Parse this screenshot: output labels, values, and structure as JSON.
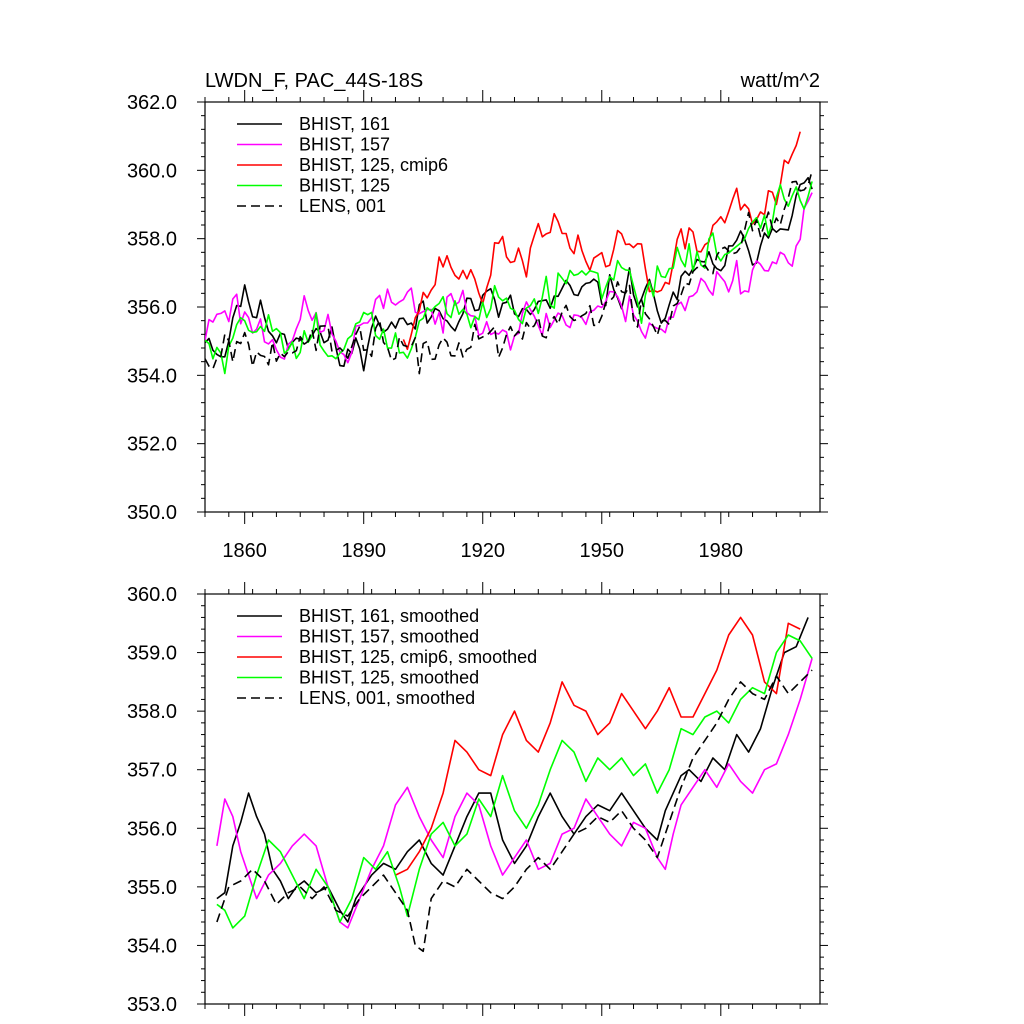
{
  "chart_data": [
    {
      "type": "line",
      "title": "LWDN_F, PAC_44S-18S",
      "units": "watt/m^2",
      "xlim": [
        1850,
        2005
      ],
      "ylim": [
        350.0,
        362.0
      ],
      "y_ticks": [
        "350.0",
        "352.0",
        "354.0",
        "356.0",
        "358.0",
        "360.0",
        "362.0"
      ],
      "x_ticks": [
        "1860",
        "1890",
        "1920",
        "1950",
        "1980"
      ],
      "legend_position": "top-left",
      "series": [
        {
          "name": "BHIST, 161",
          "color": "#000000",
          "dash": "solid",
          "anchors_x": [
            1850,
            1855,
            1858,
            1862,
            1866,
            1870,
            1875,
            1880,
            1885,
            1890,
            1895,
            1900,
            1905,
            1910,
            1915,
            1920,
            1925,
            1930,
            1935,
            1940,
            1945,
            1950,
            1955,
            1960,
            1965,
            1970,
            1975,
            1980,
            1985,
            1990,
            1995,
            2003
          ],
          "anchors_y": [
            355.3,
            354.6,
            356.3,
            356.0,
            355.5,
            355.2,
            355.3,
            355.1,
            354.4,
            355.0,
            355.6,
            355.4,
            355.7,
            355.9,
            356.0,
            356.2,
            355.9,
            355.8,
            356.0,
            356.2,
            356.4,
            356.4,
            356.5,
            356.6,
            355.8,
            356.5,
            357.1,
            357.4,
            357.6,
            358.0,
            358.7,
            359.5
          ],
          "amplitude": 0.75,
          "noise_seed": 11
        },
        {
          "name": "BHIST, 157",
          "color": "#ff00ff",
          "dash": "solid",
          "anchors_x": [
            1850,
            1855,
            1860,
            1865,
            1870,
            1875,
            1880,
            1885,
            1890,
            1895,
            1900,
            1905,
            1910,
            1915,
            1920,
            1925,
            1930,
            1935,
            1940,
            1945,
            1950,
            1955,
            1960,
            1965,
            1970,
            1975,
            1980,
            1985,
            1990,
            1995,
            2003
          ],
          "anchors_y": [
            355.2,
            356.2,
            355.8,
            355.2,
            355.0,
            355.7,
            355.5,
            354.6,
            355.4,
            355.9,
            356.6,
            355.9,
            355.6,
            356.2,
            356.0,
            355.3,
            355.5,
            355.6,
            355.7,
            355.7,
            356.1,
            356.0,
            355.8,
            355.4,
            355.9,
            356.5,
            357.0,
            356.8,
            357.3,
            357.2,
            359.2
          ],
          "amplitude": 0.8,
          "noise_seed": 23
        },
        {
          "name": "BHIST, 125, cmip6",
          "color": "#ff0000",
          "dash": "solid",
          "anchors_x": [
            1900,
            1905,
            1910,
            1915,
            1920,
            1925,
            1930,
            1935,
            1940,
            1945,
            1950,
            1955,
            1960,
            1965,
            1970,
            1975,
            1980,
            1985,
            1990,
            1995,
            2000
          ],
          "anchors_y": [
            355.3,
            356.2,
            357.3,
            357.0,
            356.6,
            357.8,
            357.4,
            358.0,
            358.2,
            357.7,
            357.3,
            358.0,
            357.6,
            356.2,
            357.9,
            357.8,
            358.6,
            359.3,
            358.5,
            359.5,
            361.3
          ],
          "amplitude": 0.75,
          "noise_seed": 37
        },
        {
          "name": "BHIST, 125",
          "color": "#00ff00",
          "dash": "solid",
          "anchors_x": [
            1850,
            1855,
            1860,
            1865,
            1870,
            1875,
            1880,
            1885,
            1890,
            1895,
            1900,
            1905,
            1910,
            1915,
            1920,
            1925,
            1930,
            1935,
            1940,
            1945,
            1950,
            1955,
            1960,
            1965,
            1970,
            1975,
            1980,
            1985,
            1990,
            1995,
            2003
          ],
          "anchors_y": [
            354.8,
            354.4,
            355.3,
            355.8,
            355.2,
            354.8,
            355.4,
            354.6,
            355.5,
            355.2,
            354.5,
            355.6,
            356.0,
            355.6,
            355.9,
            356.6,
            356.0,
            356.2,
            356.6,
            357.2,
            356.8,
            357.0,
            356.4,
            356.7,
            357.8,
            357.4,
            357.6,
            358.2,
            358.4,
            359.0,
            359.2
          ],
          "amplitude": 0.8,
          "noise_seed": 51
        },
        {
          "name": "LENS, 001",
          "color": "#000000",
          "dash": "dashed",
          "anchors_x": [
            1850,
            1855,
            1860,
            1865,
            1870,
            1875,
            1880,
            1885,
            1890,
            1895,
            1900,
            1905,
            1910,
            1915,
            1920,
            1925,
            1930,
            1935,
            1940,
            1945,
            1950,
            1955,
            1960,
            1965,
            1970,
            1975,
            1980,
            1985,
            1990,
            1995,
            2003
          ],
          "anchors_y": [
            354.6,
            355.0,
            355.0,
            355.1,
            354.9,
            354.8,
            354.9,
            354.5,
            355.0,
            355.2,
            354.6,
            354.4,
            354.9,
            355.0,
            355.2,
            354.9,
            355.1,
            355.4,
            355.6,
            355.8,
            356.1,
            356.2,
            355.9,
            355.6,
            356.7,
            357.3,
            357.8,
            358.4,
            358.1,
            358.5,
            360.5
          ],
          "amplitude": 0.85,
          "noise_seed": 67
        }
      ]
    },
    {
      "type": "line",
      "title": "",
      "xlim": [
        1850,
        2005
      ],
      "ylim": [
        353.0,
        360.0
      ],
      "y_ticks": [
        "353.0",
        "354.0",
        "355.0",
        "356.0",
        "357.0",
        "358.0",
        "359.0",
        "360.0"
      ],
      "legend_position": "top-left",
      "series": [
        {
          "name": "BHIST, 161, smoothed",
          "color": "#000000",
          "dash": "solid",
          "x": [
            1853,
            1855,
            1857,
            1859,
            1861,
            1863,
            1865,
            1867,
            1869,
            1871,
            1873,
            1875,
            1878,
            1881,
            1884,
            1886,
            1888,
            1890,
            1892,
            1895,
            1898,
            1901,
            1904,
            1907,
            1910,
            1913,
            1916,
            1919,
            1922,
            1925,
            1928,
            1931,
            1934,
            1937,
            1940,
            1943,
            1946,
            1949,
            1952,
            1955,
            1958,
            1961,
            1964,
            1966,
            1968,
            1970,
            1972,
            1975,
            1978,
            1981,
            1984,
            1987,
            1990,
            1993,
            1996,
            1999,
            2002
          ],
          "y": [
            354.8,
            354.9,
            355.7,
            356.1,
            356.6,
            356.2,
            355.9,
            355.3,
            355.1,
            354.8,
            355.0,
            355.1,
            354.9,
            355.0,
            354.6,
            354.4,
            354.8,
            355.0,
            355.2,
            355.4,
            355.3,
            355.6,
            355.8,
            355.4,
            355.2,
            355.7,
            356.2,
            356.6,
            356.6,
            355.8,
            355.4,
            355.7,
            356.2,
            356.6,
            356.2,
            355.9,
            356.2,
            356.4,
            356.3,
            356.6,
            356.3,
            356.0,
            355.8,
            356.3,
            356.6,
            356.9,
            357.0,
            356.8,
            357.2,
            357.0,
            357.6,
            357.3,
            357.7,
            358.4,
            359.0,
            359.1,
            359.6
          ]
        },
        {
          "name": "BHIST, 157, smoothed",
          "color": "#ff00ff",
          "dash": "solid",
          "x": [
            1853,
            1855,
            1857,
            1859,
            1861,
            1863,
            1866,
            1869,
            1872,
            1875,
            1878,
            1881,
            1884,
            1886,
            1889,
            1892,
            1895,
            1898,
            1901,
            1904,
            1907,
            1910,
            1913,
            1916,
            1919,
            1922,
            1925,
            1928,
            1931,
            1934,
            1937,
            1940,
            1943,
            1946,
            1949,
            1952,
            1955,
            1958,
            1961,
            1964,
            1966,
            1968,
            1970,
            1973,
            1976,
            1979,
            1982,
            1985,
            1988,
            1991,
            1994,
            1997,
            2000,
            2003
          ],
          "y": [
            355.7,
            356.5,
            356.2,
            355.6,
            355.2,
            354.8,
            355.2,
            355.4,
            355.7,
            355.9,
            355.7,
            355.0,
            354.4,
            354.3,
            354.8,
            355.3,
            355.7,
            356.4,
            356.7,
            356.2,
            355.8,
            355.5,
            356.2,
            356.6,
            356.4,
            355.7,
            355.2,
            355.5,
            355.8,
            355.3,
            355.4,
            355.9,
            356.0,
            356.5,
            356.2,
            355.9,
            355.7,
            356.1,
            356.0,
            355.5,
            355.3,
            355.9,
            356.4,
            356.7,
            357.0,
            356.7,
            357.1,
            356.8,
            356.6,
            357.0,
            357.1,
            357.6,
            358.2,
            358.9
          ]
        },
        {
          "name": "BHIST, 125, cmip6, smoothed",
          "color": "#ff0000",
          "dash": "solid",
          "x": [
            1898,
            1901,
            1904,
            1907,
            1910,
            1913,
            1916,
            1919,
            1922,
            1925,
            1928,
            1931,
            1934,
            1937,
            1940,
            1943,
            1946,
            1949,
            1952,
            1955,
            1958,
            1961,
            1964,
            1967,
            1970,
            1973,
            1976,
            1979,
            1982,
            1985,
            1988,
            1991,
            1994,
            1997,
            2000
          ],
          "y": [
            355.2,
            355.3,
            355.6,
            356.0,
            356.6,
            357.5,
            357.3,
            357.0,
            356.9,
            357.6,
            358.0,
            357.5,
            357.3,
            357.8,
            358.5,
            358.1,
            358.0,
            357.6,
            357.8,
            358.3,
            358.0,
            357.7,
            358.0,
            358.4,
            357.9,
            357.9,
            358.3,
            358.7,
            359.3,
            359.6,
            359.3,
            358.5,
            358.3,
            359.5,
            359.4
          ]
        },
        {
          "name": "BHIST, 125, smoothed",
          "color": "#00ff00",
          "dash": "solid",
          "x": [
            1853,
            1855,
            1857,
            1860,
            1863,
            1866,
            1869,
            1872,
            1875,
            1878,
            1881,
            1884,
            1887,
            1890,
            1893,
            1896,
            1899,
            1901,
            1904,
            1907,
            1910,
            1913,
            1916,
            1919,
            1922,
            1925,
            1928,
            1931,
            1934,
            1937,
            1940,
            1943,
            1946,
            1949,
            1952,
            1955,
            1958,
            1961,
            1964,
            1967,
            1970,
            1973,
            1976,
            1979,
            1982,
            1985,
            1988,
            1991,
            1994,
            1997,
            2000,
            2003
          ],
          "y": [
            354.7,
            354.6,
            354.3,
            354.5,
            355.2,
            355.8,
            355.6,
            355.2,
            354.8,
            355.3,
            355.0,
            354.4,
            354.8,
            355.5,
            355.3,
            355.6,
            355.0,
            354.5,
            355.3,
            355.9,
            356.1,
            355.7,
            355.9,
            356.5,
            356.2,
            356.9,
            356.3,
            356.0,
            356.4,
            357.0,
            357.5,
            357.3,
            356.8,
            357.2,
            357.0,
            357.2,
            356.9,
            357.1,
            356.6,
            357.0,
            357.7,
            357.6,
            357.9,
            358.0,
            357.8,
            358.2,
            358.4,
            358.3,
            359.0,
            359.3,
            359.2,
            358.9
          ]
        },
        {
          "name": "LENS, 001, smoothed",
          "color": "#000000",
          "dash": "dashed",
          "x": [
            1853,
            1856,
            1859,
            1862,
            1865,
            1868,
            1871,
            1874,
            1877,
            1880,
            1883,
            1886,
            1889,
            1892,
            1895,
            1898,
            1901,
            1903,
            1905,
            1907,
            1910,
            1913,
            1916,
            1919,
            1922,
            1925,
            1928,
            1931,
            1934,
            1937,
            1940,
            1943,
            1946,
            1949,
            1952,
            1955,
            1958,
            1961,
            1964,
            1967,
            1970,
            1973,
            1976,
            1979,
            1982,
            1985,
            1988,
            1991,
            1994,
            1997,
            2000,
            2003
          ],
          "y": [
            354.4,
            355.0,
            355.1,
            355.3,
            355.1,
            354.7,
            354.9,
            355.0,
            354.8,
            355.0,
            354.6,
            354.5,
            354.8,
            355.0,
            355.2,
            354.9,
            354.6,
            354.0,
            353.9,
            354.8,
            355.1,
            355.0,
            355.3,
            355.1,
            354.9,
            354.8,
            355.0,
            355.3,
            355.5,
            355.3,
            355.6,
            355.9,
            356.0,
            356.2,
            356.1,
            356.3,
            356.0,
            355.8,
            355.5,
            356.1,
            356.7,
            357.2,
            357.5,
            357.8,
            358.2,
            358.5,
            358.3,
            358.2,
            358.6,
            358.3,
            358.5,
            358.7
          ]
        }
      ]
    }
  ]
}
